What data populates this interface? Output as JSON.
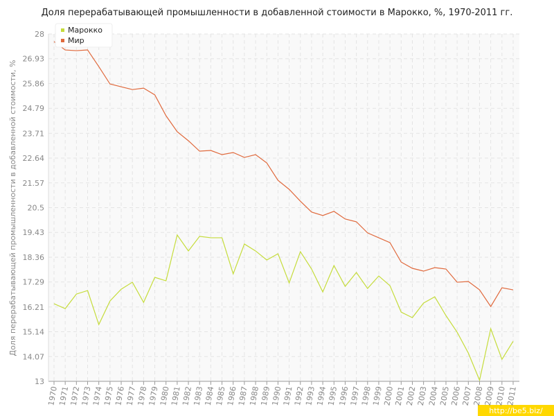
{
  "chart_data": {
    "type": "line",
    "title": "Доля перерабатывающей промышленности в добавленной стоимости в Марокко, %, 1970-2011 гг.",
    "y_label": "Доля перерабатывающей промышленности в добавленной стоимости, %",
    "watermark": "http://be5.biz/",
    "categories": [
      "1970",
      "1971",
      "1972",
      "1973",
      "1974",
      "1975",
      "1976",
      "1977",
      "1978",
      "1979",
      "1980",
      "1981",
      "1982",
      "1983",
      "1984",
      "1985",
      "1986",
      "1987",
      "1988",
      "1989",
      "1990",
      "1991",
      "1992",
      "1993",
      "1994",
      "1995",
      "1996",
      "1997",
      "1998",
      "1999",
      "2000",
      "2001",
      "2002",
      "2003",
      "2004",
      "2005",
      "2006",
      "2007",
      "2008",
      "2009",
      "2010",
      "2011"
    ],
    "series": [
      {
        "name": "Марокко",
        "color": "#c5dc3a",
        "values": [
          16.35,
          16.14,
          16.77,
          16.92,
          15.45,
          16.47,
          16.98,
          17.28,
          16.41,
          17.49,
          17.34,
          19.32,
          18.63,
          19.26,
          19.2,
          19.2,
          17.64,
          18.93,
          18.63,
          18.24,
          18.51,
          17.25,
          18.6,
          17.85,
          16.86,
          18.0,
          17.1,
          17.7,
          17.01,
          17.55,
          17.13,
          15.99,
          15.75,
          16.38,
          16.65,
          15.84,
          15.12,
          14.22,
          13.05,
          15.27,
          13.95,
          14.73
        ]
      },
      {
        "name": "Мир",
        "color": "#e0693c",
        "values": [
          27.67,
          27.31,
          27.28,
          27.31,
          26.59,
          25.84,
          25.72,
          25.6,
          25.66,
          25.37,
          24.47,
          23.78,
          23.39,
          22.94,
          22.97,
          22.79,
          22.88,
          22.67,
          22.79,
          22.43,
          21.68,
          21.29,
          20.78,
          20.31,
          20.16,
          20.34,
          20.01,
          19.89,
          19.41,
          19.2,
          18.99,
          18.15,
          17.88,
          17.76,
          17.91,
          17.85,
          17.28,
          17.31,
          16.95,
          16.23,
          17.04,
          16.95
        ]
      }
    ],
    "ylim": [
      13,
      28
    ],
    "yticks": [
      13,
      14.07,
      15.14,
      16.21,
      17.29,
      18.36,
      19.43,
      20.5,
      21.57,
      22.64,
      23.71,
      24.79,
      25.86,
      26.93,
      28
    ],
    "grid": true,
    "legend": "top-left"
  }
}
